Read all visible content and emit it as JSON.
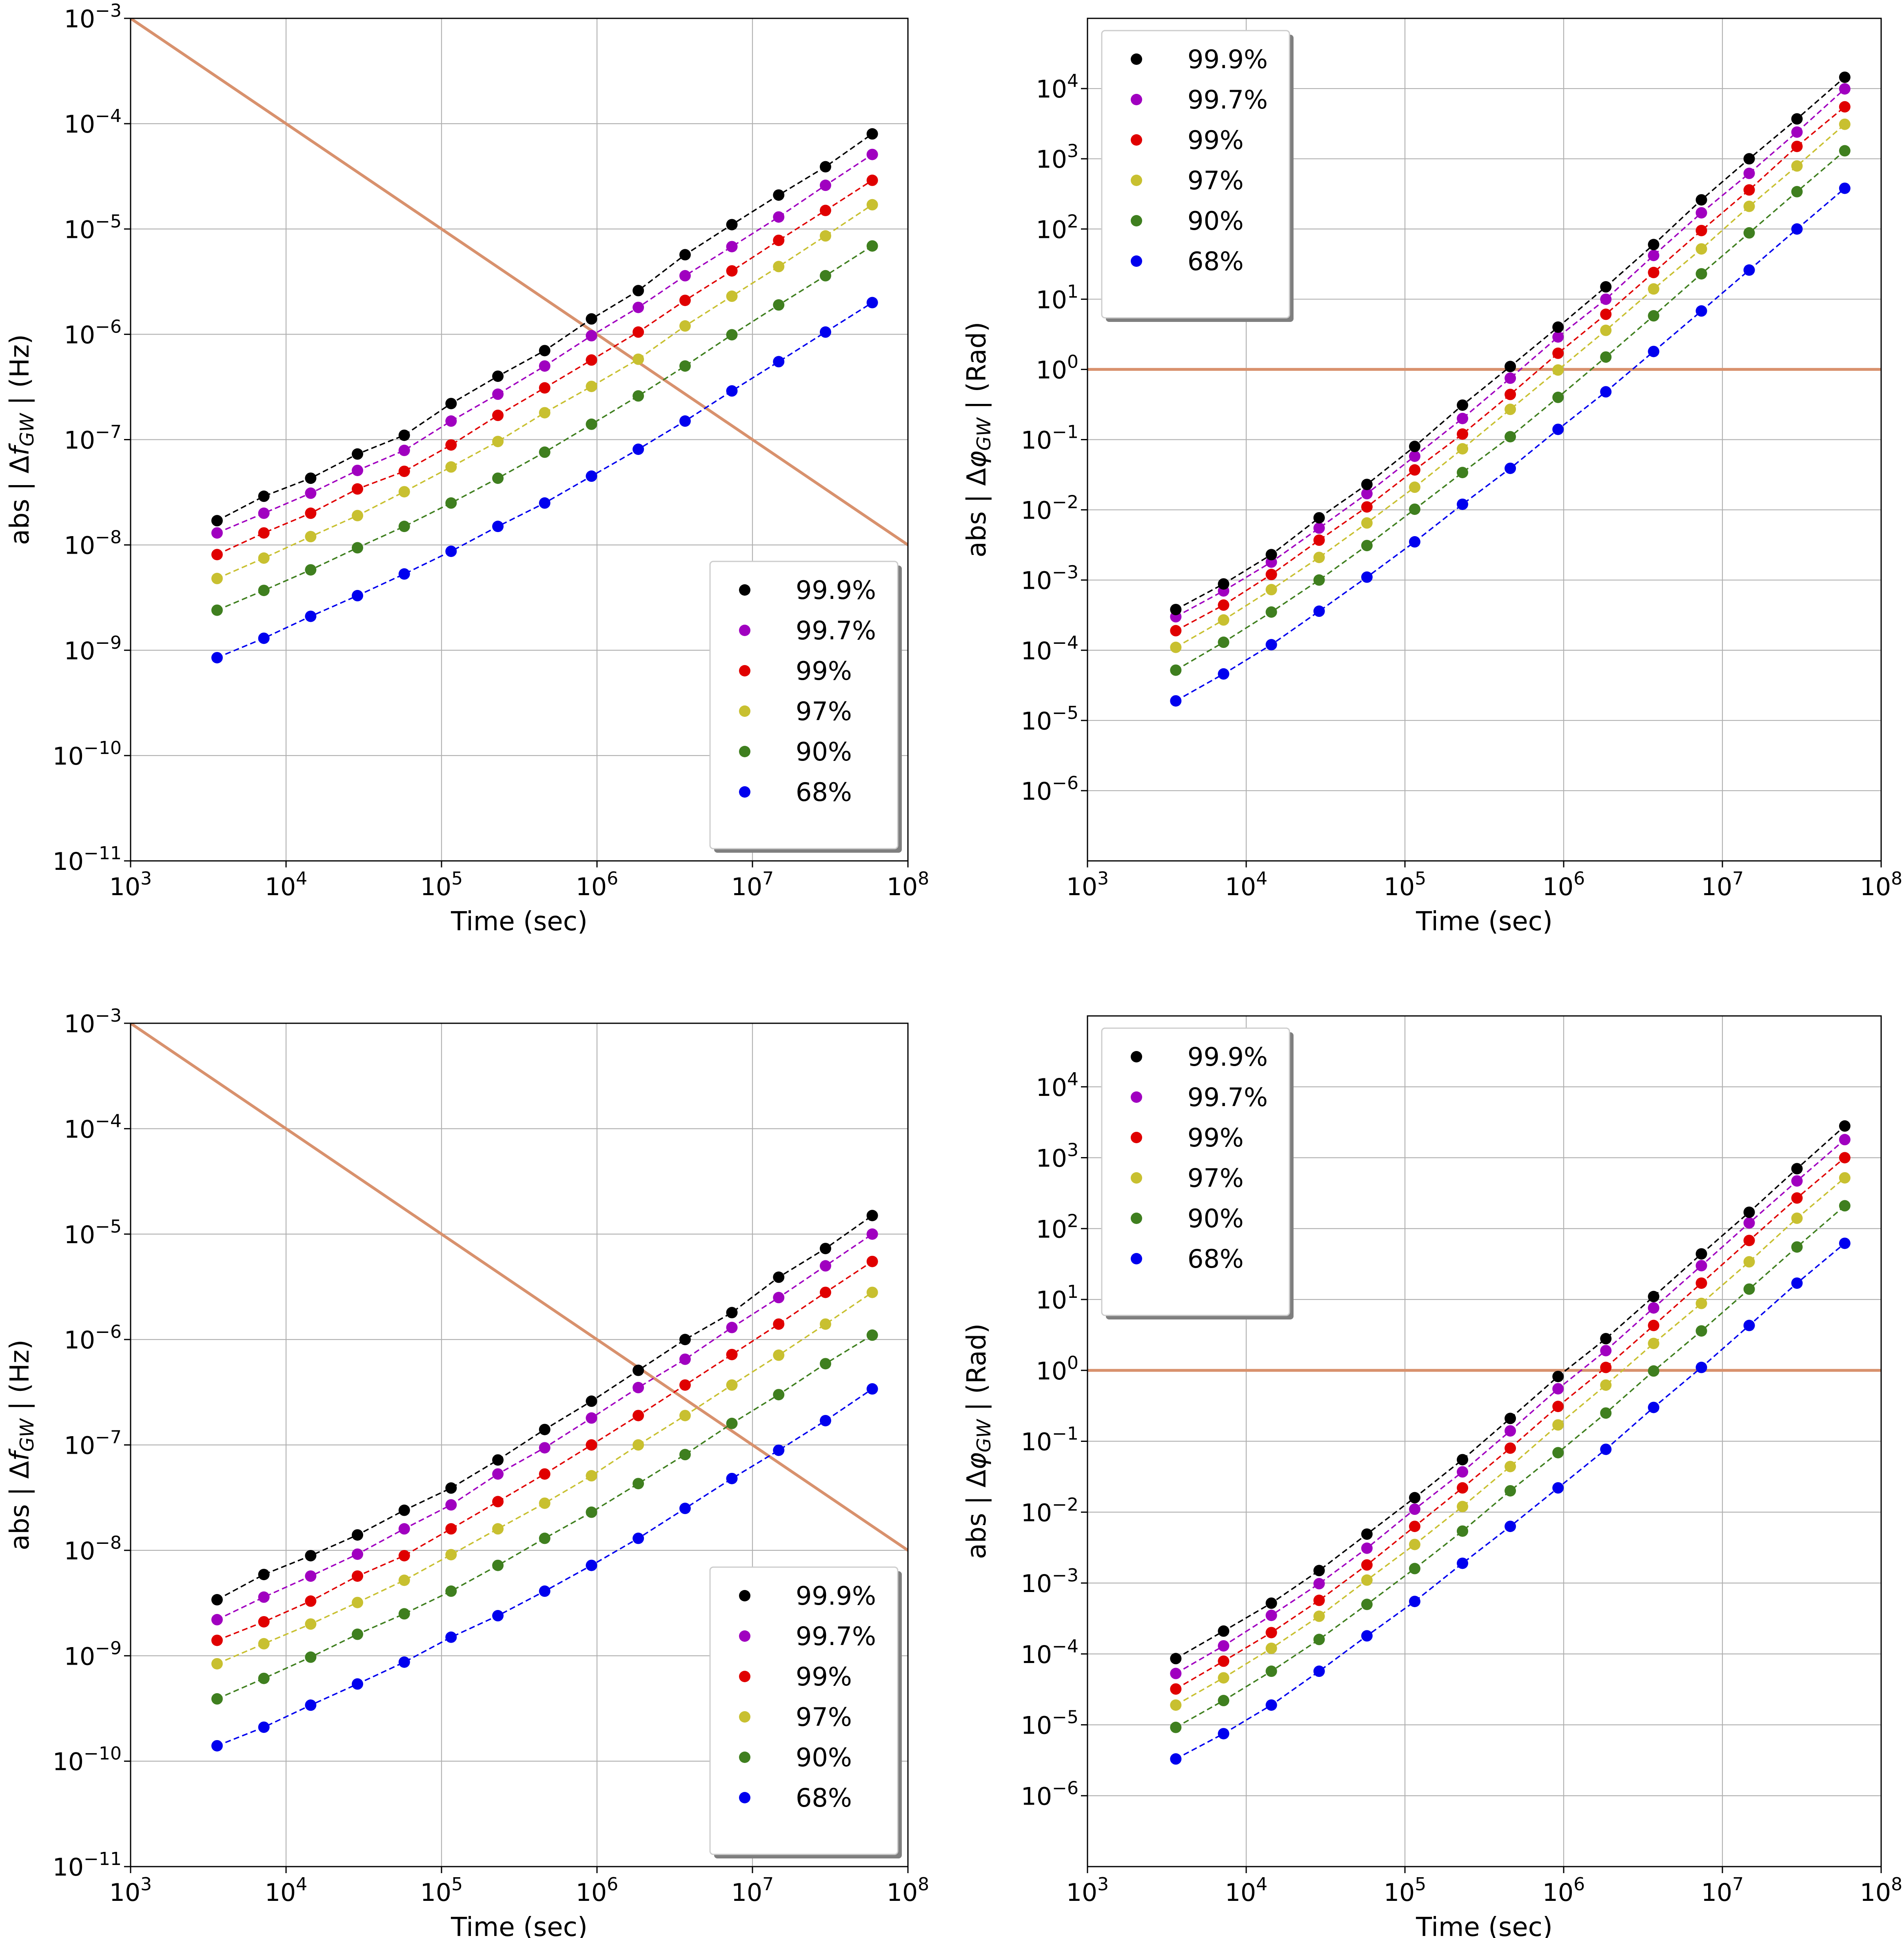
{
  "chart_data": [
    {
      "type": "line",
      "panel": "top-left",
      "xlabel": "Time (sec)",
      "ylabel": "abs | Δf_GW |  (Hz)",
      "x_scale": "log",
      "y_scale": "log",
      "xlim": [
        1000,
        100000000
      ],
      "ylim": [
        1e-11,
        0.001
      ],
      "grid": true,
      "legend_position": "lower-right",
      "x_tick_labels": [
        "10^3",
        "10^4",
        "10^5",
        "10^6",
        "10^7",
        "10^8"
      ],
      "y_tick_labels": [
        "10^-11",
        "10^-10",
        "10^-9",
        "10^-8",
        "10^-7",
        "10^-6",
        "10^-5",
        "10^-4",
        "10^-3"
      ],
      "x": [
        3600,
        7200,
        14400,
        28800,
        57600,
        115200,
        230400,
        460800,
        921600,
        1843200,
        3686400,
        7372800,
        14745600,
        29491200,
        58982400
      ],
      "series": [
        {
          "name": "99.9%",
          "color": "#000000",
          "values": [
            1.7e-08,
            2.9e-08,
            4.3e-08,
            7.3e-08,
            1.1e-07,
            2.2e-07,
            4e-07,
            7e-07,
            1.4e-06,
            2.6e-06,
            5.7e-06,
            1.1e-05,
            2.1e-05,
            3.9e-05,
            8e-05
          ]
        },
        {
          "name": "99.7%",
          "color": "#a000c0",
          "values": [
            1.3e-08,
            2e-08,
            3.1e-08,
            5.1e-08,
            7.9e-08,
            1.5e-07,
            2.7e-07,
            5e-07,
            9.7e-07,
            1.8e-06,
            3.6e-06,
            6.8e-06,
            1.3e-05,
            2.6e-05,
            5.1e-05
          ]
        },
        {
          "name": "99%",
          "color": "#e00000",
          "values": [
            8.1e-09,
            1.3e-08,
            2e-08,
            3.4e-08,
            5e-08,
            8.9e-08,
            1.7e-07,
            3.1e-07,
            5.7e-07,
            1.05e-06,
            2.1e-06,
            4e-06,
            7.8e-06,
            1.5e-05,
            2.9e-05
          ]
        },
        {
          "name": "97%",
          "color": "#c8c030",
          "values": [
            4.8e-09,
            7.5e-09,
            1.2e-08,
            1.9e-08,
            3.2e-08,
            5.5e-08,
            9.6e-08,
            1.8e-07,
            3.2e-07,
            5.8e-07,
            1.2e-06,
            2.3e-06,
            4.4e-06,
            8.6e-06,
            1.7e-05
          ]
        },
        {
          "name": "90%",
          "color": "#3f7f1f",
          "values": [
            2.4e-09,
            3.7e-09,
            5.8e-09,
            9.4e-09,
            1.5e-08,
            2.5e-08,
            4.3e-08,
            7.6e-08,
            1.4e-07,
            2.6e-07,
            5e-07,
            9.9e-07,
            1.9e-06,
            3.6e-06,
            6.9e-06
          ]
        },
        {
          "name": "68%",
          "color": "#0000ee",
          "values": [
            8.5e-10,
            1.3e-09,
            2.1e-09,
            3.3e-09,
            5.3e-09,
            8.7e-09,
            1.5e-08,
            2.5e-08,
            4.5e-08,
            8.1e-08,
            1.5e-07,
            2.9e-07,
            5.5e-07,
            1.05e-06,
            2e-06
          ]
        }
      ],
      "reference_line": {
        "x": [
          1000,
          100000000
        ],
        "y": [
          0.001,
          1e-08
        ],
        "color": "#d8916d"
      }
    },
    {
      "type": "line",
      "panel": "top-right",
      "xlabel": "Time (sec)",
      "ylabel": "abs | Δφ_GW |  (Rad)",
      "x_scale": "log",
      "y_scale": "log",
      "xlim": [
        1000,
        100000000
      ],
      "ylim": [
        1e-07,
        100000
      ],
      "grid": true,
      "legend_position": "upper-left",
      "x_tick_labels": [
        "10^3",
        "10^4",
        "10^5",
        "10^6",
        "10^7",
        "10^8"
      ],
      "y_tick_labels": [
        "10^-6",
        "10^-5",
        "10^-4",
        "10^-3",
        "10^-2",
        "10^-1",
        "10^0",
        "10^1",
        "10^2",
        "10^3",
        "10^4"
      ],
      "x": [
        3600,
        7200,
        14400,
        28800,
        57600,
        115200,
        230400,
        460800,
        921600,
        1843200,
        3686400,
        7372800,
        14745600,
        29491200,
        58982400
      ],
      "series": [
        {
          "name": "99.9%",
          "color": "#000000",
          "values": [
            0.00038,
            0.00088,
            0.0023,
            0.0077,
            0.023,
            0.08,
            0.31,
            1.1,
            4.0,
            15,
            60,
            260,
            1000,
            3700,
            14500
          ]
        },
        {
          "name": "99.7%",
          "color": "#a000c0",
          "values": [
            0.0003,
            0.0007,
            0.0018,
            0.0055,
            0.017,
            0.058,
            0.2,
            0.75,
            2.9,
            10,
            42,
            170,
            620,
            2400,
            9900
          ]
        },
        {
          "name": "99%",
          "color": "#e00000",
          "values": [
            0.00019,
            0.00044,
            0.0012,
            0.0037,
            0.011,
            0.037,
            0.12,
            0.44,
            1.7,
            6.1,
            24,
            95,
            360,
            1500,
            5500
          ]
        },
        {
          "name": "97%",
          "color": "#c8c030",
          "values": [
            0.00011,
            0.00027,
            0.00073,
            0.0021,
            0.0065,
            0.021,
            0.074,
            0.27,
            0.98,
            3.6,
            14,
            52,
            210,
            790,
            3100
          ]
        },
        {
          "name": "90%",
          "color": "#3f7f1f",
          "values": [
            5.2e-05,
            0.00013,
            0.00035,
            0.001,
            0.0031,
            0.0102,
            0.034,
            0.11,
            0.4,
            1.5,
            5.8,
            23,
            88,
            340,
            1300
          ]
        },
        {
          "name": "68%",
          "color": "#0000ee",
          "values": [
            1.9e-05,
            4.6e-05,
            0.00012,
            0.00036,
            0.0011,
            0.0035,
            0.012,
            0.039,
            0.14,
            0.48,
            1.8,
            6.8,
            26,
            100,
            380
          ]
        }
      ],
      "reference_line": {
        "x": [
          1000,
          100000000
        ],
        "y": [
          1,
          1
        ],
        "color": "#d8916d"
      }
    },
    {
      "type": "line",
      "panel": "bottom-left",
      "xlabel": "Time (sec)",
      "ylabel": "abs | Δf_GW |  (Hz)",
      "x_scale": "log",
      "y_scale": "log",
      "xlim": [
        1000,
        100000000
      ],
      "ylim": [
        1e-11,
        0.001
      ],
      "grid": true,
      "legend_position": "lower-right",
      "x_tick_labels": [
        "10^3",
        "10^4",
        "10^5",
        "10^6",
        "10^7",
        "10^8"
      ],
      "y_tick_labels": [
        "10^-11",
        "10^-10",
        "10^-9",
        "10^-8",
        "10^-7",
        "10^-6",
        "10^-5",
        "10^-4",
        "10^-3"
      ],
      "x": [
        3600,
        7200,
        14400,
        28800,
        57600,
        115200,
        230400,
        460800,
        921600,
        1843200,
        3686400,
        7372800,
        14745600,
        29491200,
        58982400
      ],
      "series": [
        {
          "name": "99.9%",
          "color": "#000000",
          "values": [
            3.4e-09,
            5.9e-09,
            8.9e-09,
            1.4e-08,
            2.4e-08,
            3.9e-08,
            7.2e-08,
            1.4e-07,
            2.6e-07,
            5.1e-07,
            1e-06,
            1.8e-06,
            3.9e-06,
            7.3e-06,
            1.5e-05
          ]
        },
        {
          "name": "99.7%",
          "color": "#a000c0",
          "values": [
            2.2e-09,
            3.6e-09,
            5.7e-09,
            9.2e-09,
            1.6e-08,
            2.7e-08,
            5.3e-08,
            9.4e-08,
            1.8e-07,
            3.5e-07,
            6.5e-07,
            1.3e-06,
            2.5e-06,
            5e-06,
            1e-05
          ]
        },
        {
          "name": "99%",
          "color": "#e00000",
          "values": [
            1.4e-09,
            2.1e-09,
            3.3e-09,
            5.7e-09,
            8.9e-09,
            1.6e-08,
            2.9e-08,
            5.3e-08,
            1e-07,
            1.9e-07,
            3.7e-07,
            7.2e-07,
            1.4e-06,
            2.8e-06,
            5.5e-06
          ]
        },
        {
          "name": "97%",
          "color": "#c8c030",
          "values": [
            8.4e-10,
            1.3e-09,
            2e-09,
            3.2e-09,
            5.2e-09,
            9.1e-09,
            1.6e-08,
            2.8e-08,
            5.1e-08,
            1e-07,
            1.9e-07,
            3.7e-07,
            7.1e-07,
            1.4e-06,
            2.8e-06
          ]
        },
        {
          "name": "90%",
          "color": "#3f7f1f",
          "values": [
            3.9e-10,
            6.1e-10,
            9.7e-10,
            1.6e-09,
            2.5e-09,
            4.1e-09,
            7.2e-09,
            1.3e-08,
            2.3e-08,
            4.3e-08,
            8.1e-08,
            1.6e-07,
            3e-07,
            5.9e-07,
            1.1e-06
          ]
        },
        {
          "name": "68%",
          "color": "#0000ee",
          "values": [
            1.4e-10,
            2.1e-10,
            3.4e-10,
            5.4e-10,
            8.7e-10,
            1.5e-09,
            2.4e-09,
            4.1e-09,
            7.2e-09,
            1.3e-08,
            2.5e-08,
            4.8e-08,
            8.9e-08,
            1.7e-07,
            3.4e-07
          ]
        }
      ],
      "reference_line": {
        "x": [
          1000,
          100000000
        ],
        "y": [
          0.001,
          1e-08
        ],
        "color": "#d8916d"
      }
    },
    {
      "type": "line",
      "panel": "bottom-right",
      "xlabel": "Time (sec)",
      "ylabel": "abs | Δφ_GW |  (Rad)",
      "x_scale": "log",
      "y_scale": "log",
      "xlim": [
        1000,
        100000000
      ],
      "ylim": [
        1e-07,
        100000
      ],
      "grid": true,
      "legend_position": "upper-left",
      "x_tick_labels": [
        "10^3",
        "10^4",
        "10^5",
        "10^6",
        "10^7",
        "10^8"
      ],
      "y_tick_labels": [
        "10^-6",
        "10^-5",
        "10^-4",
        "10^-3",
        "10^-2",
        "10^-1",
        "10^0",
        "10^1",
        "10^2",
        "10^3",
        "10^4"
      ],
      "x": [
        3600,
        7200,
        14400,
        28800,
        57600,
        115200,
        230400,
        460800,
        921600,
        1843200,
        3686400,
        7372800,
        14745600,
        29491200,
        58982400
      ],
      "series": [
        {
          "name": "99.9%",
          "color": "#000000",
          "values": [
            8.6e-05,
            0.00021,
            0.00052,
            0.0015,
            0.0049,
            0.016,
            0.055,
            0.21,
            0.82,
            2.8,
            11,
            44,
            170,
            700,
            2800
          ]
        },
        {
          "name": "99.7%",
          "color": "#a000c0",
          "values": [
            5.3e-05,
            0.00013,
            0.00035,
            0.00098,
            0.0031,
            0.011,
            0.037,
            0.14,
            0.55,
            1.9,
            7.6,
            30,
            120,
            470,
            1800
          ]
        },
        {
          "name": "99%",
          "color": "#e00000",
          "values": [
            3.2e-05,
            7.9e-05,
            0.0002,
            0.00057,
            0.0018,
            0.0063,
            0.022,
            0.08,
            0.31,
            1.1,
            4.3,
            17,
            68,
            270,
            1000
          ]
        },
        {
          "name": "97%",
          "color": "#c8c030",
          "values": [
            1.9e-05,
            4.6e-05,
            0.00012,
            0.00034,
            0.0011,
            0.0035,
            0.012,
            0.044,
            0.17,
            0.62,
            2.4,
            8.8,
            34,
            140,
            520
          ]
        },
        {
          "name": "90%",
          "color": "#3f7f1f",
          "values": [
            9.2e-06,
            2.2e-05,
            5.7e-05,
            0.00016,
            0.0005,
            0.0016,
            0.0054,
            0.02,
            0.069,
            0.25,
            0.98,
            3.6,
            14,
            55,
            210
          ]
        },
        {
          "name": "68%",
          "color": "#0000ee",
          "values": [
            3.3e-06,
            7.5e-06,
            1.9e-05,
            5.7e-05,
            0.00018,
            0.00055,
            0.0019,
            0.0063,
            0.022,
            0.077,
            0.3,
            1.1,
            4.3,
            17,
            62
          ]
        }
      ],
      "reference_line": {
        "x": [
          1000,
          100000000
        ],
        "y": [
          1,
          1
        ],
        "color": "#d8916d"
      }
    }
  ]
}
